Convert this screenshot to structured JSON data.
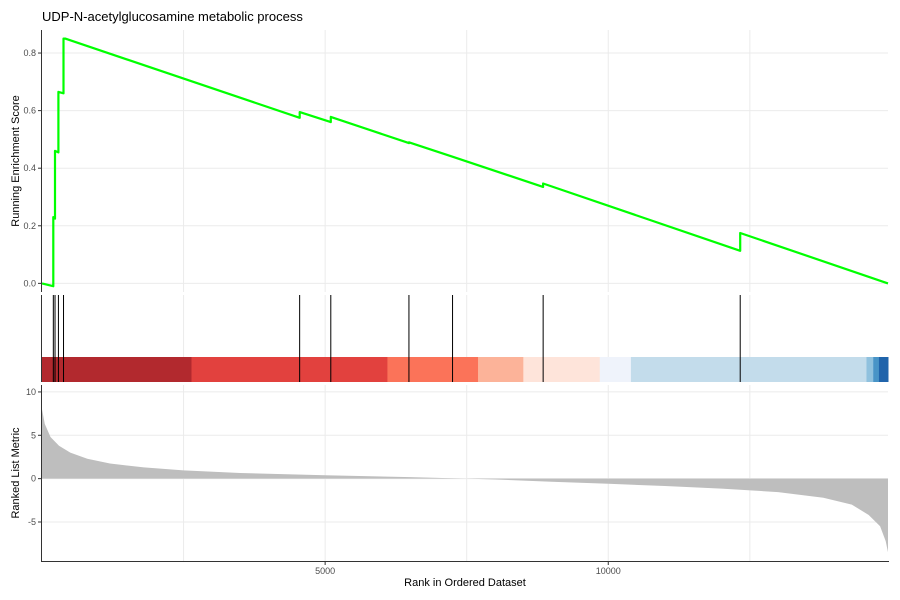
{
  "chart_data": {
    "type": "line",
    "title": "UDP-N-acetylglucosamine metabolic process",
    "xlabel": "Rank in Ordered Dataset",
    "xlim": [
      0,
      14940
    ],
    "x_ticks": [
      5000,
      10000
    ],
    "colors": {
      "curve": "#00ff00",
      "hit_line": "#000000",
      "metric_fill": "#bebebe",
      "grid": "#ebebeb"
    },
    "running_enrichment": {
      "ylabel": "Running Enrichment Score",
      "ylim": [
        -0.03,
        0.88
      ],
      "y_ticks": [
        0.0,
        0.2,
        0.4,
        0.6,
        0.8
      ],
      "x": [
        0,
        200,
        200,
        230,
        230,
        290,
        290,
        380,
        380,
        410,
        410,
        4550,
        4550,
        5100,
        5100,
        6480,
        6480,
        7250,
        7250,
        8850,
        8850,
        12330,
        12330,
        14940
      ],
      "y": [
        0.0,
        -0.01,
        0.23,
        0.225,
        0.46,
        0.455,
        0.665,
        0.66,
        0.85,
        0.85,
        0.85,
        0.575,
        0.595,
        0.56,
        0.578,
        0.487,
        0.49,
        0.44,
        0.44,
        0.335,
        0.347,
        0.113,
        0.175,
        0.0
      ]
    },
    "hits": [
      200,
      230,
      290,
      380,
      4550,
      5100,
      6480,
      7250,
      8850,
      12330
    ],
    "color_bar": {
      "ranges": [
        {
          "from": 0,
          "to": 2640,
          "color": "#b2292e"
        },
        {
          "from": 2640,
          "to": 6100,
          "color": "#e2413e"
        },
        {
          "from": 6100,
          "to": 7700,
          "color": "#fb7359"
        },
        {
          "from": 7700,
          "to": 8500,
          "color": "#fcb399"
        },
        {
          "from": 8500,
          "to": 9850,
          "color": "#fee4da"
        },
        {
          "from": 9850,
          "to": 10400,
          "color": "#eff3fb"
        },
        {
          "from": 10400,
          "to": 14560,
          "color": "#c3dceb"
        },
        {
          "from": 14560,
          "to": 14680,
          "color": "#8fc1de"
        },
        {
          "from": 14680,
          "to": 14780,
          "color": "#4894c7"
        },
        {
          "from": 14780,
          "to": 14940,
          "color": "#2064ab"
        }
      ]
    },
    "ranked_metric": {
      "ylabel": "Ranked List Metric",
      "ylim": [
        -9.5,
        10.8
      ],
      "y_ticks": [
        10,
        5,
        0,
        -5
      ],
      "x": [
        0,
        50,
        150,
        300,
        500,
        800,
        1200,
        1800,
        2500,
        3500,
        5000,
        6500,
        7400,
        8000,
        9000,
        10000,
        11000,
        12000,
        13000,
        13800,
        14300,
        14600,
        14800,
        14900,
        14940
      ],
      "y": [
        8.0,
        6.3,
        4.8,
        3.8,
        3.0,
        2.3,
        1.75,
        1.3,
        0.95,
        0.65,
        0.4,
        0.18,
        0.02,
        -0.1,
        -0.35,
        -0.6,
        -0.85,
        -1.15,
        -1.55,
        -2.2,
        -3.0,
        -4.2,
        -5.5,
        -7.2,
        -8.5
      ]
    }
  }
}
